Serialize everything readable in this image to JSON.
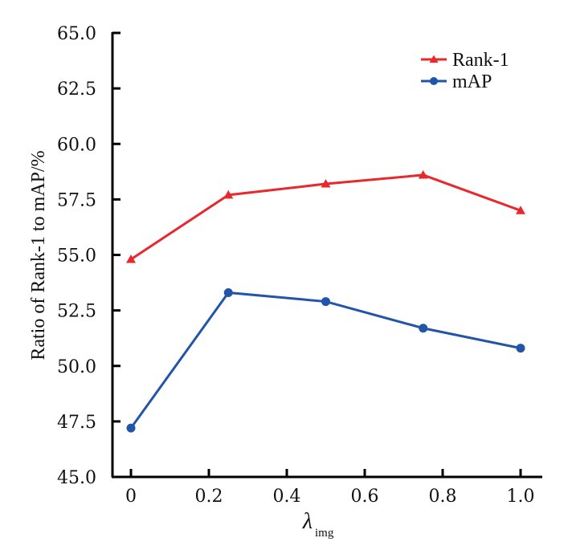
{
  "chart_data": {
    "type": "line",
    "title": "",
    "xlabel": "λ_img",
    "xlabel_main": "λ",
    "xlabel_sub": "img",
    "ylabel": "Ratio of Rank-1 to mAP/%",
    "x": [
      0,
      0.25,
      0.5,
      0.75,
      1.0
    ],
    "xlim": [
      -0.04,
      1.05
    ],
    "ylim": [
      45.0,
      65.0
    ],
    "xticks": [
      0,
      0.2,
      0.4,
      0.6,
      0.8,
      1.0
    ],
    "xtick_labels": [
      "0",
      "0.2",
      "0.4",
      "0.6",
      "0.8",
      "1.0"
    ],
    "yticks": [
      45.0,
      47.5,
      50.0,
      52.5,
      55.0,
      57.5,
      60.0,
      62.5,
      65.0
    ],
    "ytick_labels": [
      "45.0",
      "47.5",
      "50.0",
      "52.5",
      "55.0",
      "57.5",
      "60.0",
      "62.5",
      "65.0"
    ],
    "grid": false,
    "legend_position": "top-right",
    "series": [
      {
        "name": "Rank-1",
        "marker": "triangle",
        "color": "#e8282c",
        "values": [
          54.8,
          57.7,
          58.2,
          58.6,
          57.0
        ]
      },
      {
        "name": "mAP",
        "marker": "circle",
        "color": "#2255aa",
        "values": [
          47.2,
          53.3,
          52.9,
          51.7,
          50.8
        ]
      }
    ]
  }
}
